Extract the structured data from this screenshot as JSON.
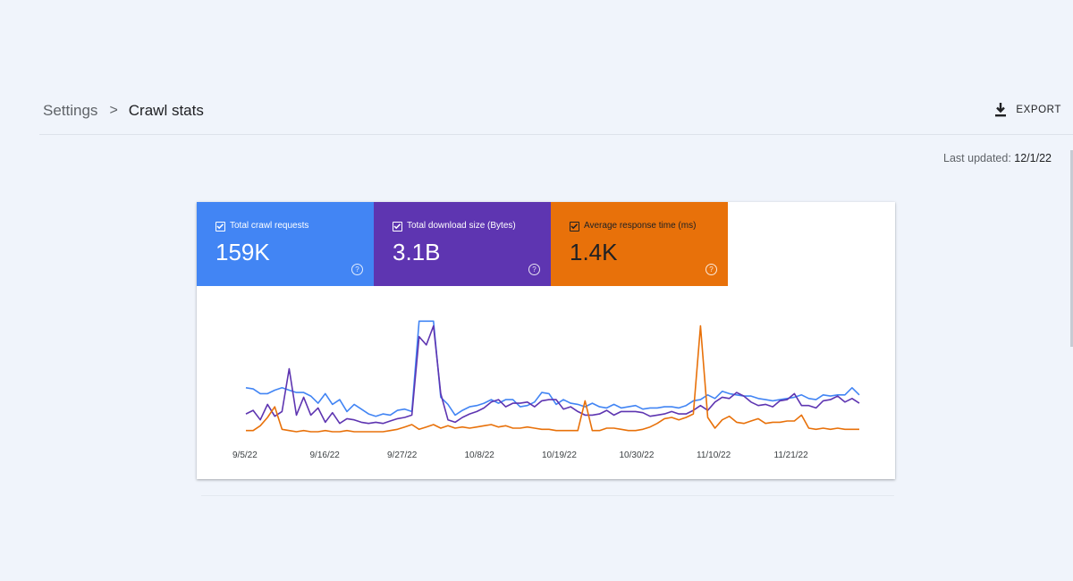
{
  "breadcrumb": {
    "parent": "Settings",
    "separator": ">",
    "current": "Crawl stats"
  },
  "toolbar": {
    "export_label": "EXPORT",
    "export_icon": "download-icon"
  },
  "last_updated": {
    "label": "Last updated:",
    "date": "12/1/22"
  },
  "metrics": [
    {
      "label": "Total crawl requests",
      "value": "159K",
      "color": "#4285f4",
      "checked": true
    },
    {
      "label": "Total download size (Bytes)",
      "value": "3.1B",
      "color": "#5e35b1",
      "checked": true
    },
    {
      "label": "Average response time (ms)",
      "value": "1.4K",
      "color": "#e8710a",
      "checked": true
    }
  ],
  "chart_data": {
    "type": "line",
    "x_tick_labels": [
      "9/5/22",
      "9/16/22",
      "9/27/22",
      "10/8/22",
      "10/19/22",
      "10/30/22",
      "11/10/22",
      "11/21/22"
    ],
    "grid": false,
    "legend": "none",
    "series": [
      {
        "name": "Total crawl requests",
        "color": "#4285f4",
        "values": [
          0.37,
          0.36,
          0.32,
          0.32,
          0.35,
          0.37,
          0.35,
          0.33,
          0.33,
          0.3,
          0.24,
          0.32,
          0.23,
          0.27,
          0.17,
          0.23,
          0.19,
          0.15,
          0.13,
          0.15,
          0.14,
          0.18,
          0.19,
          0.17,
          0.93,
          0.93,
          0.93,
          0.29,
          0.23,
          0.14,
          0.18,
          0.21,
          0.22,
          0.24,
          0.27,
          0.24,
          0.27,
          0.27,
          0.21,
          0.22,
          0.25,
          0.33,
          0.32,
          0.23,
          0.27,
          0.24,
          0.23,
          0.21,
          0.24,
          0.21,
          0.2,
          0.23,
          0.2,
          0.21,
          0.22,
          0.19,
          0.2,
          0.2,
          0.21,
          0.21,
          0.2,
          0.22,
          0.26,
          0.27,
          0.31,
          0.28,
          0.34,
          0.32,
          0.31,
          0.3,
          0.3,
          0.28,
          0.27,
          0.26,
          0.27,
          0.28,
          0.29,
          0.31,
          0.28,
          0.27,
          0.31,
          0.3,
          0.31,
          0.31,
          0.37,
          0.31
        ]
      },
      {
        "name": "Total download size (Bytes)",
        "color": "#5e35b1",
        "values": [
          0.15,
          0.18,
          0.1,
          0.23,
          0.13,
          0.17,
          0.53,
          0.14,
          0.29,
          0.14,
          0.2,
          0.08,
          0.16,
          0.07,
          0.11,
          0.1,
          0.08,
          0.07,
          0.08,
          0.07,
          0.09,
          0.11,
          0.12,
          0.14,
          0.8,
          0.73,
          0.89,
          0.32,
          0.1,
          0.08,
          0.12,
          0.15,
          0.17,
          0.2,
          0.25,
          0.27,
          0.21,
          0.24,
          0.24,
          0.25,
          0.21,
          0.26,
          0.27,
          0.27,
          0.19,
          0.21,
          0.17,
          0.14,
          0.14,
          0.15,
          0.18,
          0.14,
          0.17,
          0.17,
          0.17,
          0.16,
          0.13,
          0.14,
          0.15,
          0.17,
          0.15,
          0.15,
          0.18,
          0.22,
          0.18,
          0.25,
          0.29,
          0.28,
          0.33,
          0.3,
          0.25,
          0.22,
          0.23,
          0.21,
          0.26,
          0.27,
          0.32,
          0.22,
          0.22,
          0.2,
          0.26,
          0.27,
          0.3,
          0.25,
          0.28,
          0.24
        ]
      },
      {
        "name": "Average response time (ms)",
        "color": "#e8710a",
        "values": [
          0.01,
          0.01,
          0.05,
          0.12,
          0.21,
          0.02,
          0.01,
          0.0,
          0.01,
          0.0,
          0.0,
          0.01,
          0.0,
          0.0,
          0.01,
          0.0,
          0.0,
          0.0,
          0.0,
          0.0,
          0.01,
          0.02,
          0.04,
          0.06,
          0.02,
          0.04,
          0.06,
          0.03,
          0.05,
          0.03,
          0.04,
          0.03,
          0.04,
          0.05,
          0.06,
          0.04,
          0.05,
          0.03,
          0.03,
          0.04,
          0.03,
          0.02,
          0.02,
          0.01,
          0.01,
          0.01,
          0.01,
          0.26,
          0.01,
          0.01,
          0.03,
          0.03,
          0.02,
          0.01,
          0.01,
          0.02,
          0.04,
          0.07,
          0.11,
          0.12,
          0.1,
          0.12,
          0.15,
          0.89,
          0.12,
          0.03,
          0.1,
          0.13,
          0.08,
          0.07,
          0.09,
          0.11,
          0.07,
          0.08,
          0.08,
          0.09,
          0.09,
          0.14,
          0.03,
          0.02,
          0.03,
          0.02,
          0.03,
          0.02,
          0.02,
          0.02
        ]
      }
    ]
  }
}
